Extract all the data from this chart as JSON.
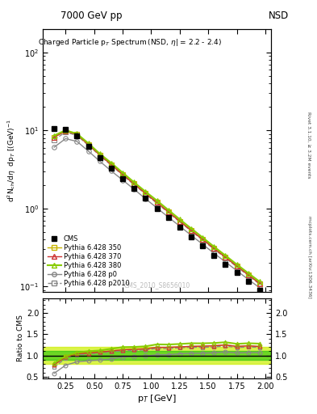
{
  "title_top_left": "7000 GeV pp",
  "title_top_right": "NSD",
  "plot_title": "Charged Particle p$_T$ Spectrum (NSD, η| = 2.2 - 2.4)",
  "ylabel_main": "d$^2$N$_{ch}$/dη dp$_T$ [(GeV)$^{-1}$",
  "ylabel_ratio": "Ratio to CMS",
  "xlabel": "p$_T$ [GeV]",
  "watermark": "CMS_2010_S8656010",
  "right_label1": "Rivet 3.1.10, ≥ 3.2M events",
  "right_label2": "mcplots.cern.ch [arXiv:1306.3436]",
  "pt_bins": [
    0.15,
    0.25,
    0.35,
    0.45,
    0.55,
    0.65,
    0.75,
    0.85,
    0.95,
    1.05,
    1.15,
    1.25,
    1.35,
    1.45,
    1.55,
    1.65,
    1.75,
    1.85,
    1.95
  ],
  "cms_data": [
    10.5,
    10.2,
    8.5,
    6.2,
    4.5,
    3.3,
    2.4,
    1.8,
    1.35,
    1.0,
    0.76,
    0.57,
    0.43,
    0.33,
    0.25,
    0.19,
    0.15,
    0.115,
    0.09
  ],
  "py350_data": [
    8.2,
    9.85,
    8.85,
    6.55,
    4.85,
    3.65,
    2.72,
    2.06,
    1.56,
    1.19,
    0.905,
    0.685,
    0.522,
    0.402,
    0.307,
    0.237,
    0.182,
    0.141,
    0.109
  ],
  "py370_data": [
    8.2,
    9.85,
    8.85,
    6.55,
    4.85,
    3.65,
    2.72,
    2.06,
    1.56,
    1.19,
    0.905,
    0.685,
    0.522,
    0.402,
    0.307,
    0.237,
    0.182,
    0.141,
    0.109
  ],
  "py380_data": [
    8.6,
    10.05,
    9.05,
    6.82,
    5.02,
    3.82,
    2.87,
    2.16,
    1.64,
    1.26,
    0.955,
    0.724,
    0.553,
    0.424,
    0.323,
    0.249,
    0.191,
    0.148,
    0.115
  ],
  "pyp0_data": [
    6.1,
    7.85,
    7.22,
    5.42,
    4.02,
    3.02,
    2.31,
    1.76,
    1.33,
    1.015,
    0.772,
    0.592,
    0.452,
    0.347,
    0.266,
    0.206,
    0.159,
    0.123,
    0.096
  ],
  "pyp2010_data": [
    7.6,
    9.52,
    8.62,
    6.42,
    4.77,
    3.57,
    2.67,
    2.01,
    1.525,
    1.165,
    0.883,
    0.673,
    0.513,
    0.393,
    0.3,
    0.232,
    0.178,
    0.138,
    0.107
  ],
  "py350_ratio": [
    0.781,
    0.966,
    1.041,
    1.056,
    1.078,
    1.106,
    1.133,
    1.144,
    1.156,
    1.19,
    1.191,
    1.202,
    1.214,
    1.218,
    1.228,
    1.247,
    1.213,
    1.226,
    1.211
  ],
  "py370_ratio": [
    0.781,
    0.966,
    1.041,
    1.056,
    1.078,
    1.106,
    1.133,
    1.144,
    1.156,
    1.19,
    1.191,
    1.202,
    1.214,
    1.218,
    1.228,
    1.247,
    1.213,
    1.226,
    1.211
  ],
  "py380_ratio": [
    0.819,
    0.985,
    1.065,
    1.1,
    1.116,
    1.158,
    1.196,
    1.2,
    1.215,
    1.26,
    1.257,
    1.27,
    1.286,
    1.285,
    1.292,
    1.311,
    1.273,
    1.287,
    1.278
  ],
  "pyp0_ratio": [
    0.581,
    0.77,
    0.85,
    0.874,
    0.893,
    0.915,
    0.963,
    0.978,
    0.985,
    1.015,
    1.016,
    1.039,
    1.051,
    1.052,
    1.064,
    1.084,
    1.06,
    1.07,
    1.067
  ],
  "pyp2010_ratio": [
    0.724,
    0.933,
    1.015,
    1.035,
    1.06,
    1.082,
    1.113,
    1.117,
    1.13,
    1.165,
    1.162,
    1.181,
    1.193,
    1.191,
    1.2,
    1.221,
    1.187,
    1.2,
    1.189
  ],
  "cms_band_lo": 0.9,
  "cms_band_hi": 1.1,
  "cms_band_color": "#00bb00",
  "cms_outer_lo": 0.8,
  "cms_outer_hi": 1.2,
  "cms_outer_color": "#ccee00",
  "color_350": "#c8b400",
  "color_370": "#cc3333",
  "color_380": "#88cc00",
  "color_p0": "#888888",
  "color_p2010": "#888888",
  "xlim": [
    0.05,
    2.05
  ],
  "ylim_main": [
    0.085,
    200.0
  ],
  "ylim_ratio": [
    0.45,
    2.35
  ],
  "ratio_yticks": [
    0.5,
    1.0,
    1.5,
    2.0
  ]
}
